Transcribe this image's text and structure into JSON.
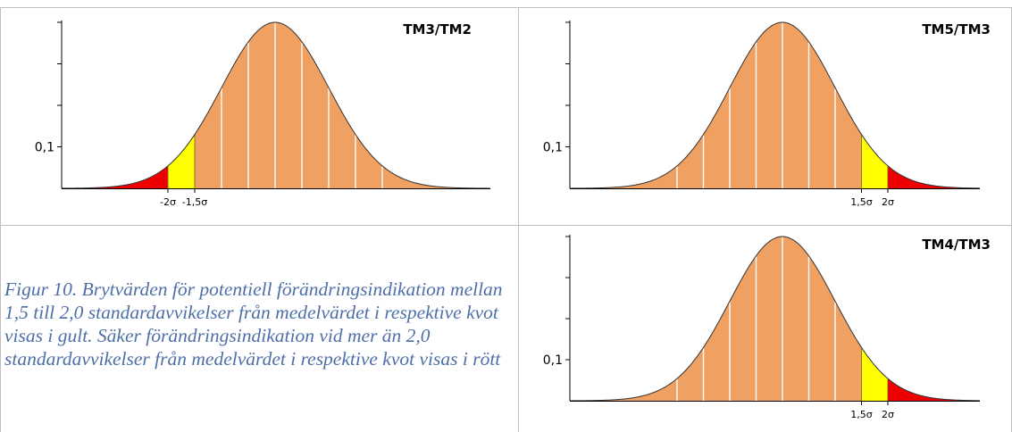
{
  "caption": "Figur 10. Brytvärden för potentiell förändringsindikation mellan 1,5 till 2,0 standardavvikelser från medelvärdet i respektive kvot visas i gult. Säker förändringsindikation vid mer än 2,0 standardavvikelser från medelvärdet i respektive kvot visas i rött",
  "colors": {
    "body": "#F0A060",
    "warning": "#FFFF00",
    "alarm": "#EE0000",
    "curve": "#333333",
    "axis": "#000000",
    "border": "#BFBFBF",
    "caption": "#4d6fa8"
  },
  "chart_data": [
    {
      "type": "area",
      "title": "TM3/TM2",
      "distribution": "normal",
      "mean": 0,
      "sd": 1,
      "xlim": [
        -4,
        4
      ],
      "ylabel_tick": "0,1",
      "y_tick_value": 0.1,
      "ylim": [
        0,
        0.4
      ],
      "sigma_gridlines": [
        -2,
        -1.5,
        -1,
        -0.5,
        0,
        0.5,
        1,
        1.5,
        2
      ],
      "warning_band": {
        "from": -2,
        "to": -1.5,
        "color": "yellow"
      },
      "alarm_band": {
        "from": -4,
        "to": -2,
        "color": "red"
      },
      "x_tick_labels": [
        {
          "x": -2,
          "label": "-2σ"
        },
        {
          "x": -1.5,
          "label": "-1,5σ"
        }
      ]
    },
    {
      "type": "area",
      "title": "TM5/TM3",
      "distribution": "normal",
      "mean": 0,
      "sd": 1,
      "xlim": [
        -4,
        4
      ],
      "ylabel_tick": "0,1",
      "y_tick_value": 0.1,
      "ylim": [
        0,
        0.4
      ],
      "sigma_gridlines": [
        -2,
        -1.5,
        -1,
        -0.5,
        0,
        0.5,
        1,
        1.5,
        2
      ],
      "warning_band": {
        "from": 1.5,
        "to": 2,
        "color": "yellow"
      },
      "alarm_band": {
        "from": 2,
        "to": 4,
        "color": "red"
      },
      "x_tick_labels": [
        {
          "x": 1.5,
          "label": "1,5σ"
        },
        {
          "x": 2,
          "label": "2σ"
        }
      ]
    },
    {
      "type": "area",
      "title": "TM4/TM3",
      "distribution": "normal",
      "mean": 0,
      "sd": 1,
      "xlim": [
        -4,
        4
      ],
      "ylabel_tick": "0,1",
      "y_tick_value": 0.1,
      "ylim": [
        0,
        0.4
      ],
      "sigma_gridlines": [
        -2,
        -1.5,
        -1,
        -0.5,
        0,
        0.5,
        1,
        1.5,
        2
      ],
      "warning_band": {
        "from": 1.5,
        "to": 2,
        "color": "yellow"
      },
      "alarm_band": {
        "from": 2,
        "to": 4,
        "color": "red"
      },
      "x_tick_labels": [
        {
          "x": 1.5,
          "label": "1,5σ"
        },
        {
          "x": 2,
          "label": "2σ"
        }
      ]
    }
  ]
}
